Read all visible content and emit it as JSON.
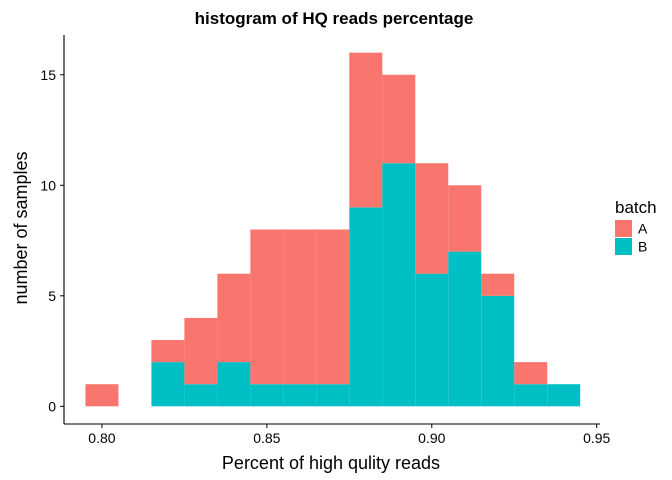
{
  "chart_data": {
    "type": "histogram",
    "stacked": true,
    "title": "histogram of HQ reads percentage",
    "xlabel": "Percent of high qulity reads",
    "ylabel": "number of samples",
    "xlim": [
      0.7885,
      0.951
    ],
    "ylim": [
      -0.8,
      16.8
    ],
    "bin_width": 0.01,
    "bins": [
      0.8,
      0.82,
      0.83,
      0.84,
      0.85,
      0.86,
      0.87,
      0.88,
      0.89,
      0.9,
      0.91,
      0.92,
      0.93,
      0.94
    ],
    "x_ticks": [
      0.8,
      0.85,
      0.9,
      0.95
    ],
    "x_tick_labels": [
      "0.80",
      "0.85",
      "0.90",
      "0.95"
    ],
    "y_ticks": [
      0,
      5,
      10,
      15
    ],
    "y_tick_labels": [
      "0",
      "5",
      "10",
      "15"
    ],
    "series": [
      {
        "name": "A",
        "color": "#F8766D",
        "values": [
          1,
          1,
          3,
          4,
          7,
          7,
          7,
          7,
          4,
          5,
          3,
          1,
          1,
          0
        ]
      },
      {
        "name": "B",
        "color": "#00BFC4",
        "values": [
          0,
          2,
          1,
          2,
          1,
          1,
          1,
          9,
          11,
          6,
          7,
          5,
          1,
          1
        ]
      }
    ],
    "legend": {
      "title": "batch",
      "position": "right",
      "entries": [
        "A",
        "B"
      ]
    },
    "grid": false
  }
}
